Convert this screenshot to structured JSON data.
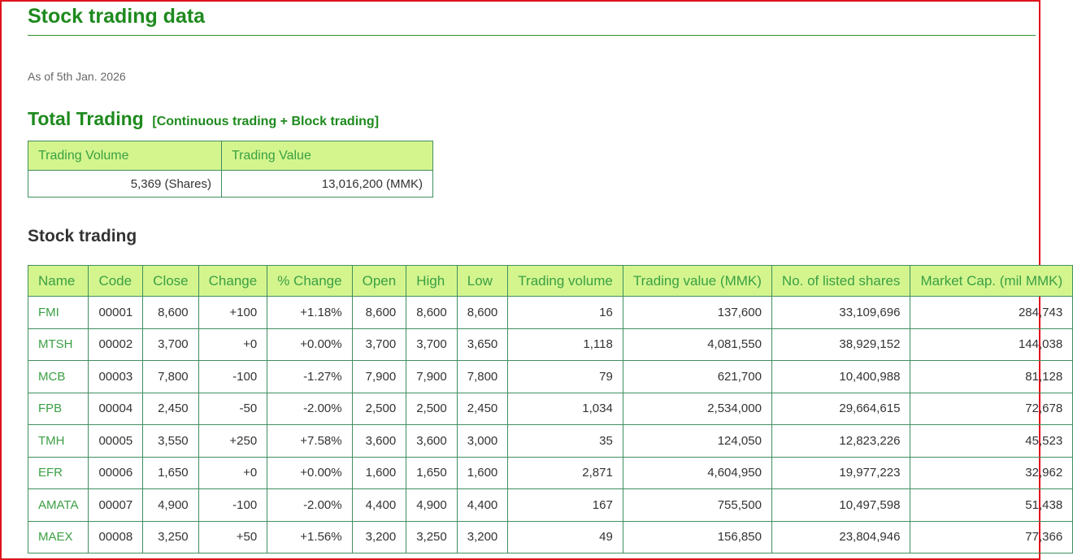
{
  "page": {
    "title": "Stock trading data",
    "as_of": "As of 5th Jan. 2026"
  },
  "total": {
    "heading": "Total Trading",
    "subheading": "[Continuous trading + Block trading]",
    "headers": [
      "Trading Volume",
      "Trading Value"
    ],
    "values": [
      "5,369 (Shares)",
      "13,016,200 (MMK)"
    ]
  },
  "stock": {
    "heading": "Stock trading",
    "headers": [
      "Name",
      "Code",
      "Close",
      "Change",
      "% Change",
      "Open",
      "High",
      "Low",
      "Trading volume",
      "Trading value (MMK)",
      "No. of listed shares",
      "Market Cap. (mil MMK)"
    ],
    "rows": [
      [
        "FMI",
        "00001",
        "8,600",
        "+100",
        "+1.18%",
        "8,600",
        "8,600",
        "8,600",
        "16",
        "137,600",
        "33,109,696",
        "284,743"
      ],
      [
        "MTSH",
        "00002",
        "3,700",
        "+0",
        "+0.00%",
        "3,700",
        "3,700",
        "3,650",
        "1,118",
        "4,081,550",
        "38,929,152",
        "144,038"
      ],
      [
        "MCB",
        "00003",
        "7,800",
        "-100",
        "-1.27%",
        "7,900",
        "7,900",
        "7,800",
        "79",
        "621,700",
        "10,400,988",
        "81,128"
      ],
      [
        "FPB",
        "00004",
        "2,450",
        "-50",
        "-2.00%",
        "2,500",
        "2,500",
        "2,450",
        "1,034",
        "2,534,000",
        "29,664,615",
        "72,678"
      ],
      [
        "TMH",
        "00005",
        "3,550",
        "+250",
        "+7.58%",
        "3,600",
        "3,600",
        "3,000",
        "35",
        "124,050",
        "12,823,226",
        "45,523"
      ],
      [
        "EFR",
        "00006",
        "1,650",
        "+0",
        "+0.00%",
        "1,600",
        "1,650",
        "1,600",
        "2,871",
        "4,604,950",
        "19,977,223",
        "32,962"
      ],
      [
        "AMATA",
        "00007",
        "4,900",
        "-100",
        "-2.00%",
        "4,400",
        "4,900",
        "4,400",
        "167",
        "755,500",
        "10,497,598",
        "51,438"
      ],
      [
        "MAEX",
        "00008",
        "3,250",
        "+50",
        "+1.56%",
        "3,200",
        "3,250",
        "3,200",
        "49",
        "156,850",
        "23,804,946",
        "77,366"
      ]
    ]
  },
  "colors": {
    "accent_green": "#1e8a1e",
    "header_bg": "#d4f58e",
    "header_text": "#3aa043",
    "border": "#3f8f5f",
    "frame": "#e0141e"
  }
}
